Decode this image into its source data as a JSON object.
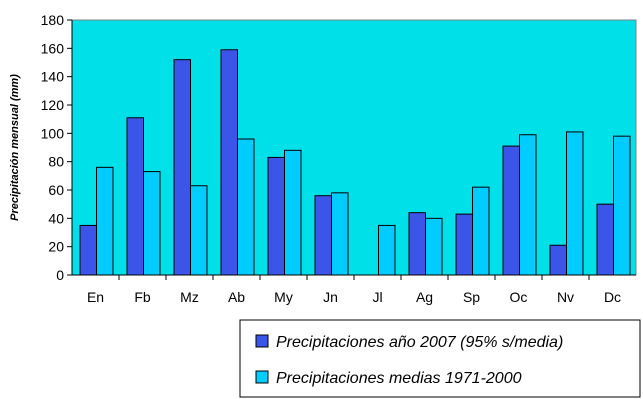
{
  "chart_data": {
    "type": "bar",
    "title": "",
    "xlabel": "",
    "ylabel": "Precipitación mensual (mm)",
    "ylim": [
      0,
      180
    ],
    "yticks": [
      0,
      20,
      40,
      60,
      80,
      100,
      120,
      140,
      160,
      180
    ],
    "grid": false,
    "legend_position": "bottom-right",
    "categories": [
      "En",
      "Fb",
      "Mz",
      "Ab",
      "My",
      "Jn",
      "Jl",
      "Ag",
      "Sp",
      "Oc",
      "Nv",
      "Dc"
    ],
    "series": [
      {
        "name": "Precipitaciones año 2007 (95% s/media)",
        "color": "#3a55e8",
        "values": [
          35,
          111,
          152,
          159,
          83,
          56,
          0,
          44,
          43,
          91,
          21,
          50
        ]
      },
      {
        "name": "Precipitaciones medias 1971-2000",
        "color": "#00ccff",
        "values": [
          76,
          73,
          63,
          96,
          88,
          58,
          35,
          40,
          62,
          99,
          101,
          98
        ]
      }
    ],
    "colors": {
      "plot_background": "#00e0e8",
      "axis": "#000000"
    }
  }
}
